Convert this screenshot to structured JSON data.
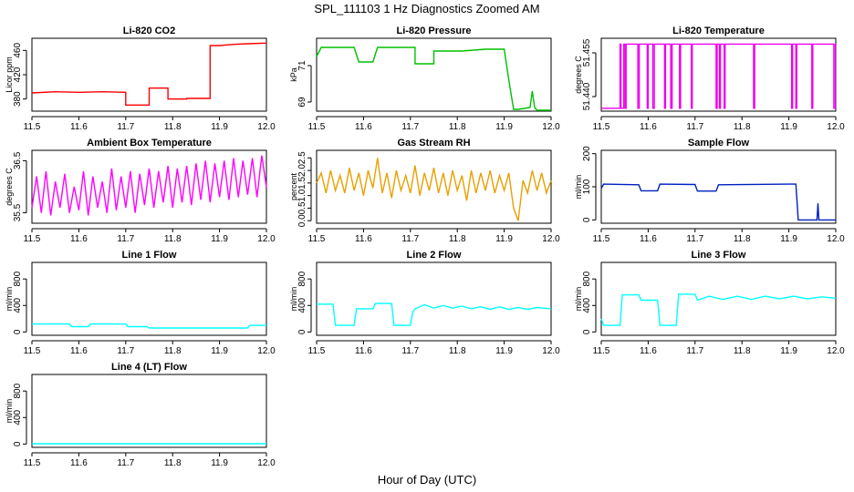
{
  "figure": {
    "title": "SPL_111103 1 Hz Diagnostics Zoomed AM",
    "xlabel": "Hour of Day (UTC)"
  },
  "chart_data": [
    {
      "type": "line",
      "title": "Li-820 CO2",
      "ylabel": "Licor ppm",
      "xlim": [
        11.5,
        12.0
      ],
      "ylim": [
        360,
        480
      ],
      "xticks": [
        "11.5",
        "11.6",
        "11.7",
        "11.8",
        "11.9",
        "12.0"
      ],
      "yticks": [
        380,
        420,
        460
      ],
      "color": "#ff0000",
      "series": [
        {
          "x": [
            11.5,
            11.55,
            11.6,
            11.65,
            11.7,
            11.7,
            11.75,
            11.75,
            11.79,
            11.79,
            11.83,
            11.83,
            11.88,
            11.88,
            11.9,
            11.93,
            11.96,
            12.0
          ],
          "y": [
            390,
            392,
            391,
            392,
            391,
            370,
            370,
            398,
            398,
            380,
            380,
            381,
            381,
            468,
            468,
            470,
            471,
            472
          ]
        }
      ]
    },
    {
      "type": "line",
      "title": "Li-820 Pressure",
      "ylabel": "kPa",
      "xlim": [
        11.5,
        12.0
      ],
      "ylim": [
        68.5,
        72.5
      ],
      "xticks": [
        "11.5",
        "11.6",
        "11.7",
        "11.8",
        "11.9",
        "12.0"
      ],
      "yticks": [
        69,
        71
      ],
      "color": "#00c000",
      "series": [
        {
          "x": [
            11.5,
            11.51,
            11.58,
            11.59,
            11.62,
            11.63,
            11.71,
            11.71,
            11.75,
            11.75,
            11.78,
            11.81,
            11.86,
            11.9,
            11.91,
            11.92,
            11.93,
            11.955,
            11.96,
            11.965,
            11.97,
            12.0
          ],
          "y": [
            71.5,
            72.0,
            72.0,
            71.2,
            71.2,
            72.0,
            72.0,
            71.1,
            71.1,
            71.8,
            71.8,
            71.8,
            71.9,
            71.9,
            70.2,
            68.6,
            68.6,
            68.7,
            69.6,
            68.7,
            68.55,
            68.55
          ]
        }
      ]
    },
    {
      "type": "line",
      "title": "Li-820 Temperature",
      "ylabel": "degrees C",
      "xlim": [
        11.5,
        12.0
      ],
      "ylim": [
        51.435,
        51.46
      ],
      "xticks": [
        "11.5",
        "11.6",
        "11.7",
        "11.8",
        "11.9",
        "12.0"
      ],
      "yticks": [
        "51.440",
        "51.455"
      ],
      "color": "#ee00ee",
      "series": [
        {
          "x": [
            11.5,
            11.54,
            11.54,
            11.542,
            11.542,
            11.548,
            11.548,
            11.551,
            11.551,
            11.553,
            11.553,
            11.578,
            11.578,
            11.581,
            11.581,
            11.598,
            11.598,
            11.6,
            11.6,
            11.61,
            11.61,
            11.613,
            11.613,
            11.635,
            11.635,
            11.637,
            11.637,
            11.648,
            11.648,
            11.651,
            11.651,
            11.667,
            11.667,
            11.669,
            11.669,
            11.692,
            11.692,
            11.694,
            11.694,
            11.745,
            11.745,
            11.747,
            11.747,
            11.752,
            11.752,
            11.754,
            11.754,
            11.762,
            11.762,
            11.764,
            11.764,
            11.825,
            11.825,
            11.827,
            11.827,
            11.906,
            11.906,
            11.908,
            11.908,
            11.915,
            11.915,
            11.917,
            11.917,
            11.949,
            11.949,
            11.951,
            11.951,
            11.996,
            11.996,
            11.999,
            11.999,
            12.0
          ],
          "y": [
            51.436,
            51.436,
            51.458,
            51.458,
            51.436,
            51.436,
            51.458,
            51.458,
            51.436,
            51.436,
            51.458,
            51.458,
            51.436,
            51.436,
            51.458,
            51.458,
            51.436,
            51.436,
            51.458,
            51.458,
            51.436,
            51.436,
            51.458,
            51.458,
            51.436,
            51.436,
            51.458,
            51.458,
            51.436,
            51.436,
            51.458,
            51.458,
            51.436,
            51.436,
            51.458,
            51.458,
            51.436,
            51.436,
            51.458,
            51.458,
            51.436,
            51.436,
            51.458,
            51.458,
            51.436,
            51.436,
            51.458,
            51.458,
            51.436,
            51.436,
            51.458,
            51.458,
            51.436,
            51.436,
            51.458,
            51.458,
            51.436,
            51.436,
            51.458,
            51.458,
            51.436,
            51.436,
            51.458,
            51.458,
            51.436,
            51.436,
            51.458,
            51.458,
            51.436,
            51.436,
            51.458,
            51.458
          ]
        }
      ]
    },
    {
      "type": "line",
      "title": "Ambient Box Temperature",
      "ylabel": "degrees C",
      "xlim": [
        11.5,
        12.0
      ],
      "ylim": [
        35.3,
        36.7
      ],
      "xticks": [
        "11.5",
        "11.6",
        "11.7",
        "11.8",
        "11.9",
        "12.0"
      ],
      "yticks": [
        35.5,
        36.5
      ],
      "color": "#ff00ff",
      "series": [
        {
          "x": [
            11.5,
            11.51,
            11.52,
            11.53,
            11.54,
            11.55,
            11.56,
            11.57,
            11.58,
            11.59,
            11.6,
            11.61,
            11.62,
            11.63,
            11.64,
            11.65,
            11.66,
            11.67,
            11.68,
            11.69,
            11.7,
            11.71,
            11.72,
            11.73,
            11.74,
            11.75,
            11.76,
            11.77,
            11.78,
            11.79,
            11.8,
            11.81,
            11.82,
            11.83,
            11.84,
            11.85,
            11.86,
            11.87,
            11.88,
            11.89,
            11.9,
            11.91,
            11.92,
            11.93,
            11.94,
            11.95,
            11.96,
            11.97,
            11.98,
            11.99,
            12.0
          ],
          "y": [
            35.6,
            36.2,
            35.5,
            36.3,
            35.45,
            36.1,
            35.6,
            36.25,
            35.5,
            36.0,
            35.55,
            36.3,
            35.45,
            36.2,
            35.6,
            36.1,
            35.5,
            36.35,
            35.55,
            36.2,
            35.6,
            36.3,
            35.5,
            36.25,
            35.65,
            36.35,
            35.6,
            36.3,
            35.7,
            36.4,
            35.6,
            36.35,
            35.7,
            36.4,
            35.65,
            36.45,
            35.75,
            36.5,
            35.7,
            36.45,
            35.8,
            36.5,
            35.75,
            36.55,
            35.8,
            36.5,
            35.85,
            36.55,
            35.8,
            36.6,
            36.0
          ]
        }
      ]
    },
    {
      "type": "line",
      "title": "Gas Stream RH",
      "ylabel": "percent",
      "xlim": [
        11.5,
        12.0
      ],
      "ylim": [
        -0.1,
        2.8
      ],
      "xticks": [
        "11.5",
        "11.6",
        "11.7",
        "11.8",
        "11.9",
        "12.0"
      ],
      "yticks": [
        "0.0",
        "0.5",
        "1.0",
        "1.5",
        "2.0",
        "2.5"
      ],
      "color": "#e8a000",
      "series": [
        {
          "x": [
            11.5,
            11.51,
            11.52,
            11.53,
            11.54,
            11.55,
            11.56,
            11.57,
            11.58,
            11.59,
            11.6,
            11.61,
            11.62,
            11.63,
            11.64,
            11.65,
            11.66,
            11.67,
            11.68,
            11.69,
            11.7,
            11.71,
            11.72,
            11.73,
            11.74,
            11.75,
            11.76,
            11.77,
            11.78,
            11.79,
            11.8,
            11.81,
            11.82,
            11.83,
            11.84,
            11.85,
            11.86,
            11.87,
            11.88,
            11.89,
            11.9,
            11.91,
            11.92,
            11.93,
            11.94,
            11.95,
            11.96,
            11.97,
            11.98,
            11.99,
            12.0
          ],
          "y": [
            1.5,
            1.9,
            1.1,
            2.0,
            1.2,
            1.8,
            1.1,
            2.1,
            1.2,
            1.9,
            1.0,
            2.0,
            1.3,
            2.5,
            1.1,
            1.9,
            0.9,
            2.0,
            1.2,
            1.8,
            1.1,
            2.2,
            1.0,
            1.9,
            1.2,
            2.1,
            1.1,
            1.9,
            1.0,
            2.0,
            1.2,
            1.8,
            0.8,
            2.0,
            1.1,
            1.9,
            1.2,
            2.0,
            1.1,
            1.8,
            1.2,
            1.9,
            0.5,
            0.0,
            1.6,
            1.1,
            2.0,
            1.2,
            1.9,
            1.1,
            1.6
          ]
        }
      ]
    },
    {
      "type": "line",
      "title": "Sample Flow",
      "ylabel": "ml/min",
      "xlim": [
        11.5,
        12.0
      ],
      "ylim": [
        -10,
        210
      ],
      "xticks": [
        "11.5",
        "11.6",
        "11.7",
        "11.8",
        "11.9",
        "12.0"
      ],
      "yticks": [
        0,
        100,
        200
      ],
      "color": "#0020c0",
      "series": [
        {
          "x": [
            11.5,
            11.505,
            11.58,
            11.585,
            11.62,
            11.625,
            11.7,
            11.705,
            11.745,
            11.75,
            11.9,
            11.915,
            11.92,
            11.96,
            11.962,
            11.964,
            11.966,
            12.0
          ],
          "y": [
            95,
            108,
            106,
            88,
            88,
            108,
            107,
            87,
            87,
            106,
            108,
            108,
            0,
            0,
            50,
            0,
            0,
            0
          ]
        }
      ]
    },
    {
      "type": "line",
      "title": "Line 1 Flow",
      "ylabel": "ml/min",
      "xlim": [
        11.5,
        12.0
      ],
      "ylim": [
        -50,
        1050
      ],
      "xticks": [
        "11.5",
        "11.6",
        "11.7",
        "11.8",
        "11.9",
        "12.0"
      ],
      "yticks": [
        0,
        400,
        800
      ],
      "color": "#00ffff",
      "series": [
        {
          "x": [
            11.5,
            11.58,
            11.585,
            11.62,
            11.625,
            11.7,
            11.705,
            11.745,
            11.75,
            11.96,
            11.965,
            12.0
          ],
          "y": [
            120,
            120,
            80,
            80,
            120,
            120,
            80,
            80,
            60,
            60,
            100,
            100
          ]
        }
      ]
    },
    {
      "type": "line",
      "title": "Line 2 Flow",
      "ylabel": "ml/min",
      "xlim": [
        11.5,
        12.0
      ],
      "ylim": [
        -50,
        1050
      ],
      "xticks": [
        "11.5",
        "11.6",
        "11.7",
        "11.8",
        "11.9",
        "12.0"
      ],
      "yticks": [
        0,
        400,
        800
      ],
      "color": "#00ffff",
      "series": [
        {
          "x": [
            11.5,
            11.535,
            11.54,
            11.58,
            11.585,
            11.62,
            11.625,
            11.66,
            11.665,
            11.7,
            11.705,
            11.71,
            11.73,
            11.75,
            11.77,
            11.79,
            11.81,
            11.83,
            11.85,
            11.87,
            11.89,
            11.91,
            11.93,
            11.95,
            11.97,
            12.0
          ],
          "y": [
            420,
            420,
            100,
            100,
            350,
            350,
            430,
            430,
            100,
            100,
            300,
            350,
            410,
            360,
            400,
            360,
            390,
            350,
            380,
            340,
            380,
            340,
            370,
            340,
            370,
            350
          ]
        }
      ]
    },
    {
      "type": "line",
      "title": "Line 3 Flow",
      "ylabel": "ml/min",
      "xlim": [
        11.5,
        12.0
      ],
      "ylim": [
        -50,
        1050
      ],
      "xticks": [
        "11.5",
        "11.6",
        "11.7",
        "11.8",
        "11.9",
        "12.0"
      ],
      "yticks": [
        0,
        400,
        800
      ],
      "color": "#00ffff",
      "series": [
        {
          "x": [
            11.5,
            11.505,
            11.54,
            11.545,
            11.58,
            11.585,
            11.62,
            11.625,
            11.66,
            11.665,
            11.7,
            11.705,
            11.73,
            11.76,
            11.79,
            11.82,
            11.85,
            11.88,
            11.91,
            11.94,
            11.97,
            12.0
          ],
          "y": [
            200,
            100,
            100,
            560,
            560,
            480,
            480,
            100,
            100,
            570,
            570,
            480,
            540,
            490,
            540,
            490,
            540,
            500,
            540,
            500,
            530,
            510
          ]
        }
      ]
    },
    {
      "type": "line",
      "title": "Line 4 (LT) Flow",
      "ylabel": "ml/min",
      "xlim": [
        11.5,
        12.0
      ],
      "ylim": [
        -50,
        1050
      ],
      "xticks": [
        "11.5",
        "11.6",
        "11.7",
        "11.8",
        "11.9",
        "12.0"
      ],
      "yticks": [
        0,
        400,
        800
      ],
      "color": "#00ffff",
      "series": [
        {
          "x": [
            11.5,
            12.0
          ],
          "y": [
            5,
            5
          ]
        }
      ]
    }
  ]
}
